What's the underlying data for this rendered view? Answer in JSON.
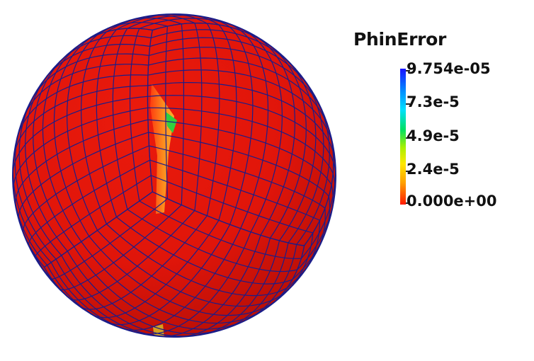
{
  "legend": {
    "title": "PhinError",
    "labels": [
      "9.754e-05",
      "7.3e-5",
      "4.9e-5",
      "2.4e-5",
      "0.000e+00"
    ],
    "range": [
      0.0,
      9.754e-05
    ],
    "colormap": [
      "#1a14ff",
      "#0090ff",
      "#00e0ff",
      "#00e060",
      "#a8f000",
      "#ffe800",
      "#ffa000",
      "#ff1a00"
    ]
  },
  "sphere": {
    "surface_color": "#e0140a",
    "grid_color": "#1a1d8a",
    "error_strip_colors": [
      "#ff5a10",
      "#ff9020",
      "#ffd030",
      "#30d040"
    ]
  }
}
